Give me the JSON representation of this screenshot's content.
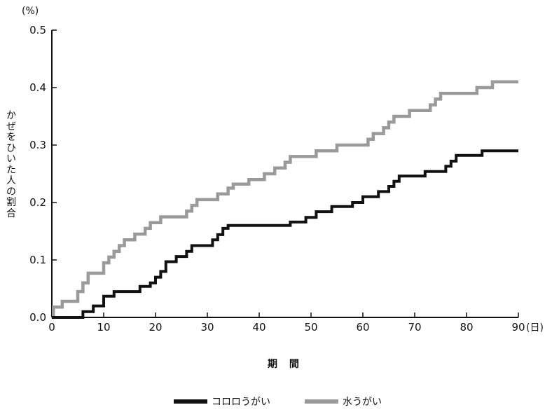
{
  "chart_data": {
    "type": "line",
    "step": true,
    "y_unit": "(%)",
    "x_unit": "(日)",
    "xlabel": "期 間",
    "ylabel": "かぜをひいた人の割合",
    "xlim": [
      0,
      90
    ],
    "ylim": [
      0,
      0.5
    ],
    "x_ticks": [
      "0",
      "10",
      "20",
      "30",
      "40",
      "50",
      "60",
      "70",
      "80",
      "90"
    ],
    "y_ticks": [
      "0.0",
      "0.1",
      "0.2",
      "0.3",
      "0.4",
      "0.5"
    ],
    "legend_position": "bottom-center",
    "series": [
      {
        "name": "コロロうがい",
        "color": "#111111",
        "points": [
          [
            0,
            0
          ],
          [
            6,
            0
          ],
          [
            6,
            0.01
          ],
          [
            8,
            0.01
          ],
          [
            8,
            0.02
          ],
          [
            10,
            0.02
          ],
          [
            10,
            0.037
          ],
          [
            12,
            0.037
          ],
          [
            12,
            0.045
          ],
          [
            17,
            0.045
          ],
          [
            17,
            0.054
          ],
          [
            19,
            0.054
          ],
          [
            19,
            0.06
          ],
          [
            20,
            0.06
          ],
          [
            20,
            0.07
          ],
          [
            21,
            0.07
          ],
          [
            21,
            0.08
          ],
          [
            22,
            0.08
          ],
          [
            22,
            0.097
          ],
          [
            24,
            0.097
          ],
          [
            24,
            0.106
          ],
          [
            26,
            0.106
          ],
          [
            26,
            0.115
          ],
          [
            27,
            0.115
          ],
          [
            27,
            0.125
          ],
          [
            31,
            0.125
          ],
          [
            31,
            0.135
          ],
          [
            32,
            0.135
          ],
          [
            32,
            0.144
          ],
          [
            33,
            0.144
          ],
          [
            33,
            0.155
          ],
          [
            34,
            0.155
          ],
          [
            34,
            0.16
          ],
          [
            46,
            0.16
          ],
          [
            46,
            0.166
          ],
          [
            49,
            0.166
          ],
          [
            49,
            0.174
          ],
          [
            51,
            0.174
          ],
          [
            51,
            0.184
          ],
          [
            54,
            0.184
          ],
          [
            54,
            0.193
          ],
          [
            58,
            0.193
          ],
          [
            58,
            0.2
          ],
          [
            60,
            0.2
          ],
          [
            60,
            0.21
          ],
          [
            63,
            0.21
          ],
          [
            63,
            0.219
          ],
          [
            65,
            0.219
          ],
          [
            65,
            0.228
          ],
          [
            66,
            0.228
          ],
          [
            66,
            0.237
          ],
          [
            67,
            0.237
          ],
          [
            67,
            0.246
          ],
          [
            72,
            0.246
          ],
          [
            72,
            0.254
          ],
          [
            76,
            0.254
          ],
          [
            76,
            0.263
          ],
          [
            77,
            0.263
          ],
          [
            77,
            0.272
          ],
          [
            78,
            0.272
          ],
          [
            78,
            0.282
          ],
          [
            83,
            0.282
          ],
          [
            83,
            0.29
          ],
          [
            90,
            0.29
          ]
        ]
      },
      {
        "name": "水うがい",
        "color": "#9a9a9a",
        "points": [
          [
            0,
            0
          ],
          [
            0.3,
            0
          ],
          [
            0.3,
            0.018
          ],
          [
            2,
            0.018
          ],
          [
            2,
            0.028
          ],
          [
            5,
            0.028
          ],
          [
            5,
            0.045
          ],
          [
            6,
            0.045
          ],
          [
            6,
            0.06
          ],
          [
            7,
            0.06
          ],
          [
            7,
            0.077
          ],
          [
            10,
            0.077
          ],
          [
            10,
            0.095
          ],
          [
            11,
            0.095
          ],
          [
            11,
            0.105
          ],
          [
            12,
            0.105
          ],
          [
            12,
            0.115
          ],
          [
            13,
            0.115
          ],
          [
            13,
            0.125
          ],
          [
            14,
            0.125
          ],
          [
            14,
            0.135
          ],
          [
            16,
            0.135
          ],
          [
            16,
            0.145
          ],
          [
            18,
            0.145
          ],
          [
            18,
            0.155
          ],
          [
            19,
            0.155
          ],
          [
            19,
            0.165
          ],
          [
            21,
            0.165
          ],
          [
            21,
            0.175
          ],
          [
            26,
            0.175
          ],
          [
            26,
            0.185
          ],
          [
            27,
            0.185
          ],
          [
            27,
            0.195
          ],
          [
            28,
            0.195
          ],
          [
            28,
            0.205
          ],
          [
            32,
            0.205
          ],
          [
            32,
            0.215
          ],
          [
            34,
            0.215
          ],
          [
            34,
            0.225
          ],
          [
            35,
            0.225
          ],
          [
            35,
            0.232
          ],
          [
            38,
            0.232
          ],
          [
            38,
            0.24
          ],
          [
            41,
            0.24
          ],
          [
            41,
            0.25
          ],
          [
            43,
            0.25
          ],
          [
            43,
            0.26
          ],
          [
            45,
            0.26
          ],
          [
            45,
            0.27
          ],
          [
            46,
            0.27
          ],
          [
            46,
            0.28
          ],
          [
            51,
            0.28
          ],
          [
            51,
            0.29
          ],
          [
            55,
            0.29
          ],
          [
            55,
            0.3
          ],
          [
            61,
            0.3
          ],
          [
            61,
            0.31
          ],
          [
            62,
            0.31
          ],
          [
            62,
            0.32
          ],
          [
            64,
            0.32
          ],
          [
            64,
            0.33
          ],
          [
            65,
            0.33
          ],
          [
            65,
            0.34
          ],
          [
            66,
            0.34
          ],
          [
            66,
            0.35
          ],
          [
            69,
            0.35
          ],
          [
            69,
            0.36
          ],
          [
            73,
            0.36
          ],
          [
            73,
            0.37
          ],
          [
            74,
            0.37
          ],
          [
            74,
            0.38
          ],
          [
            75,
            0.38
          ],
          [
            75,
            0.39
          ],
          [
            82,
            0.39
          ],
          [
            82,
            0.4
          ],
          [
            85,
            0.4
          ],
          [
            85,
            0.41
          ],
          [
            90,
            0.41
          ]
        ]
      }
    ]
  }
}
